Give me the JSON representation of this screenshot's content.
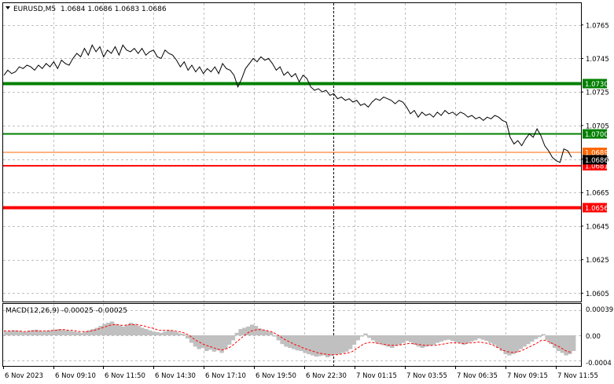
{
  "header": {
    "dropdown_icon": "triangle-down-icon",
    "symbol": "EURUSD,M5",
    "ohlc": "1.0684 1.0686 1.0683 1.0686"
  },
  "macd": {
    "label": "MACD(12,26,9) -0.00025 -0.00025",
    "axis_labels": [
      "0.00039",
      "0.00",
      "-0.0004"
    ]
  },
  "price_axis": {
    "labels": [
      "1.0765",
      "1.0745",
      "1.0725",
      "1.0705",
      "1.0685",
      "1.0665",
      "1.0645",
      "1.0625",
      "1.0605"
    ]
  },
  "time_axis": {
    "labels": [
      "6 Nov 2023",
      "6 Nov 09:10",
      "6 Nov 11:50",
      "6 Nov 14:30",
      "6 Nov 17:10",
      "6 Nov 19:50",
      "6 Nov 22:30",
      "7 Nov 01:15",
      "7 Nov 03:55",
      "7 Nov 06:35",
      "7 Nov 09:15",
      "7 Nov 11:55"
    ]
  },
  "levels": [
    {
      "name": "resistance-1",
      "price": 1.073,
      "label": "1.0730",
      "color": "#008000",
      "thick": true
    },
    {
      "name": "resistance-2",
      "price": 1.07,
      "label": "1.0700",
      "color": "#008000",
      "thick": false
    },
    {
      "name": "support-1",
      "price": 1.0681,
      "label": "1.0681",
      "color": "#ff0000",
      "thick": false
    },
    {
      "name": "support-2",
      "price": 1.0656,
      "label": "1.0656",
      "color": "#ff0000",
      "thick": true
    }
  ],
  "bid_line": {
    "price": 1.0689,
    "label": "1.0689",
    "color": "#ff6600"
  },
  "current_price": {
    "price": 1.0686,
    "label": "1.0686"
  },
  "colors": {
    "background": "#ffffff",
    "grid": "#c0c0c0",
    "price_line": "#000000",
    "histogram": "#c0c0c0",
    "signal": "#ff0000"
  },
  "chart_data": {
    "type": "line",
    "title": "EURUSD,M5",
    "xlabel": "",
    "ylabel": "",
    "x": [
      "6 Nov 2023",
      "6 Nov 09:10",
      "6 Nov 11:50",
      "6 Nov 14:30",
      "6 Nov 17:10",
      "6 Nov 19:50",
      "6 Nov 22:30",
      "7 Nov 01:15",
      "7 Nov 03:55",
      "7 Nov 06:35",
      "7 Nov 09:15",
      "7 Nov 11:55"
    ],
    "ylim": [
      1.06,
      1.0778
    ],
    "series": [
      {
        "values": [
          1.0735,
          1.0738,
          1.0753,
          1.075,
          1.0739,
          1.0745,
          1.0723,
          1.0716,
          1.0709,
          1.071,
          1.0699,
          1.0686
        ]
      }
    ],
    "close_path": [
      1.0735,
      1.0738,
      1.0736,
      1.0737,
      1.074,
      1.0739,
      1.0741,
      1.074,
      1.0738,
      1.0741,
      1.0739,
      1.0742,
      1.074,
      1.0743,
      1.0739,
      1.0744,
      1.0742,
      1.0741,
      1.0745,
      1.0748,
      1.0746,
      1.0751,
      1.0747,
      1.0753,
      1.0749,
      1.0752,
      1.0746,
      1.075,
      1.0748,
      1.0752,
      1.0747,
      1.0753,
      1.075,
      1.0749,
      1.0751,
      1.0748,
      1.0751,
      1.0747,
      1.0749,
      1.075,
      1.0746,
      1.0745,
      1.075,
      1.0748,
      1.0747,
      1.0744,
      1.074,
      1.0743,
      1.0738,
      1.0741,
      1.0737,
      1.074,
      1.0736,
      1.0739,
      1.0737,
      1.074,
      1.0736,
      1.0742,
      1.0739,
      1.0738,
      1.0735,
      1.0728,
      1.0733,
      1.0739,
      1.0742,
      1.0745,
      1.0743,
      1.0746,
      1.0744,
      1.0745,
      1.0742,
      1.0738,
      1.074,
      1.0735,
      1.0737,
      1.0734,
      1.0736,
      1.0731,
      1.0735,
      1.0733,
      1.0728,
      1.0726,
      1.0727,
      1.0725,
      1.0726,
      1.0723,
      1.0724,
      1.0721,
      1.0722,
      1.072,
      1.0721,
      1.0719,
      1.072,
      1.0717,
      1.0718,
      1.0716,
      1.0719,
      1.0721,
      1.072,
      1.0722,
      1.0721,
      1.072,
      1.0718,
      1.072,
      1.0719,
      1.0716,
      1.0712,
      1.0714,
      1.071,
      1.0713,
      1.0711,
      1.0712,
      1.071,
      1.0713,
      1.0711,
      1.0714,
      1.0712,
      1.0713,
      1.0711,
      1.0713,
      1.0712,
      1.071,
      1.0711,
      1.0709,
      1.071,
      1.0708,
      1.071,
      1.0709,
      1.0711,
      1.071,
      1.0708,
      1.0707,
      1.0698,
      1.0694,
      1.0696,
      1.0693,
      1.0697,
      1.07,
      1.0698,
      1.0703,
      1.0699,
      1.0693,
      1.069,
      1.0686,
      1.0684,
      1.0683,
      1.0691,
      1.069,
      1.0686
    ],
    "macd_histogram": [
      6,
      7,
      8,
      7,
      6,
      5,
      7,
      8,
      9,
      7,
      6,
      7,
      8,
      9,
      10,
      9,
      8,
      7,
      6,
      5,
      4,
      6,
      8,
      10,
      12,
      15,
      18,
      20,
      22,
      18,
      16,
      14,
      17,
      20,
      18,
      15,
      12,
      10,
      8,
      6,
      5,
      4,
      6,
      8,
      7,
      5,
      3,
      2,
      -5,
      -12,
      -18,
      -22,
      -20,
      -25,
      -23,
      -26,
      -24,
      -28,
      -22,
      -15,
      -8,
      4,
      10,
      12,
      14,
      17,
      15,
      11,
      9,
      7,
      5,
      -2,
      -8,
      -14,
      -18,
      -20,
      -22,
      -24,
      -25,
      -28,
      -30,
      -32,
      -34,
      -33,
      -32,
      -35,
      -33,
      -31,
      -30,
      -28,
      -26,
      -22,
      -15,
      -8,
      -2,
      3,
      -4,
      -8,
      -12,
      -14,
      -16,
      -18,
      -20,
      -17,
      -15,
      -12,
      -9,
      -11,
      -15,
      -18,
      -20,
      -18,
      -17,
      -15,
      -12,
      -10,
      -8,
      -7,
      -9,
      -11,
      -13,
      -15,
      -12,
      -10,
      -8,
      -5,
      -7,
      -9,
      -12,
      -15,
      -20,
      -25,
      -30,
      -32,
      -30,
      -27,
      -22,
      -18,
      -14,
      -10,
      -6,
      -3,
      2,
      -8,
      -14,
      -20,
      -25,
      -28,
      -32,
      -30,
      -25
    ],
    "macd_signal": [
      7,
      7,
      7,
      7,
      7,
      6,
      6,
      7,
      7,
      7,
      7,
      7,
      7,
      8,
      8,
      9,
      9,
      8,
      8,
      7,
      6,
      6,
      6,
      7,
      8,
      10,
      12,
      14,
      16,
      17,
      17,
      16,
      16,
      17,
      17,
      17,
      16,
      15,
      13,
      12,
      10,
      8,
      8,
      8,
      8,
      7,
      6,
      5,
      3,
      0,
      -5,
      -9,
      -12,
      -15,
      -17,
      -19,
      -21,
      -23,
      -23,
      -21,
      -18,
      -13,
      -8,
      -3,
      2,
      6,
      8,
      9,
      9,
      8,
      7,
      5,
      2,
      -2,
      -6,
      -9,
      -12,
      -15,
      -17,
      -20,
      -22,
      -24,
      -26,
      -28,
      -29,
      -30,
      -31,
      -31,
      -31,
      -30,
      -29,
      -28,
      -26,
      -22,
      -18,
      -14,
      -12,
      -11,
      -12,
      -13,
      -14,
      -15,
      -16,
      -16,
      -16,
      -15,
      -14,
      -13,
      -13,
      -14,
      -15,
      -16,
      -16,
      -16,
      -16,
      -15,
      -14,
      -13,
      -12,
      -12,
      -12,
      -13,
      -13,
      -12,
      -12,
      -11,
      -11,
      -12,
      -13,
      -15,
      -18,
      -21,
      -24,
      -26,
      -27,
      -27,
      -26,
      -24,
      -21,
      -18,
      -15,
      -12,
      -8,
      -8,
      -10,
      -13,
      -16,
      -19,
      -23,
      -26,
      -27
    ]
  }
}
